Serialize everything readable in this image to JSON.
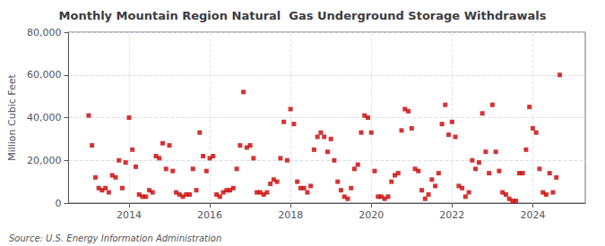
{
  "chart_data": {
    "type": "scatter",
    "title": "Monthly Mountain Region Natural  Gas Underground Storage Withdrawals",
    "ylabel": "Million Cubic Feet",
    "annotation": "Source: U.S. Energy Information Administration",
    "color": "#cc0000",
    "marker": "square",
    "grid": true,
    "xlim": [
      2012.5,
      2025.3
    ],
    "xticks": [
      2014,
      2016,
      2018,
      2020,
      2022,
      2024
    ],
    "ylim": [
      0,
      80000
    ],
    "yticks": [
      0,
      {
        "value": 20000,
        "label": "20,000"
      },
      {
        "value": 40000,
        "label": "40,000"
      },
      {
        "value": 60000,
        "label": "60,000"
      },
      {
        "value": 80000,
        "label": "80,000"
      }
    ],
    "x": [
      2013.0,
      2013.083,
      2013.167,
      2013.25,
      2013.333,
      2013.417,
      2013.5,
      2013.583,
      2013.667,
      2013.75,
      2013.833,
      2013.917,
      2014.0,
      2014.083,
      2014.167,
      2014.25,
      2014.333,
      2014.417,
      2014.5,
      2014.583,
      2014.667,
      2014.75,
      2014.833,
      2014.917,
      2015.0,
      2015.083,
      2015.167,
      2015.25,
      2015.333,
      2015.417,
      2015.5,
      2015.583,
      2015.667,
      2015.75,
      2015.833,
      2015.917,
      2016.0,
      2016.083,
      2016.167,
      2016.25,
      2016.333,
      2016.417,
      2016.5,
      2016.583,
      2016.667,
      2016.75,
      2016.833,
      2016.917,
      2017.0,
      2017.083,
      2017.167,
      2017.25,
      2017.333,
      2017.417,
      2017.5,
      2017.583,
      2017.667,
      2017.75,
      2017.833,
      2017.917,
      2018.0,
      2018.083,
      2018.167,
      2018.25,
      2018.333,
      2018.417,
      2018.5,
      2018.583,
      2018.667,
      2018.75,
      2018.833,
      2018.917,
      2019.0,
      2019.083,
      2019.167,
      2019.25,
      2019.333,
      2019.417,
      2019.5,
      2019.583,
      2019.667,
      2019.75,
      2019.833,
      2019.917,
      2020.0,
      2020.083,
      2020.167,
      2020.25,
      2020.333,
      2020.417,
      2020.5,
      2020.583,
      2020.667,
      2020.75,
      2020.833,
      2020.917,
      2021.0,
      2021.083,
      2021.167,
      2021.25,
      2021.333,
      2021.417,
      2021.5,
      2021.583,
      2021.667,
      2021.75,
      2021.833,
      2021.917,
      2022.0,
      2022.083,
      2022.167,
      2022.25,
      2022.333,
      2022.417,
      2022.5,
      2022.583,
      2022.667,
      2022.75,
      2022.833,
      2022.917,
      2023.0,
      2023.083,
      2023.167,
      2023.25,
      2023.333,
      2023.417,
      2023.5,
      2023.583,
      2023.667,
      2023.75,
      2023.833,
      2023.917,
      2024.0,
      2024.083,
      2024.167,
      2024.25,
      2024.333,
      2024.417,
      2024.5,
      2024.583,
      2024.667
    ],
    "values": [
      41000,
      27000,
      12000,
      7000,
      6000,
      7000,
      5000,
      13000,
      12000,
      20000,
      7000,
      19000,
      40000,
      25000,
      17000,
      4000,
      3000,
      3000,
      6000,
      5000,
      22000,
      21000,
      28000,
      16000,
      27000,
      15000,
      5000,
      4000,
      3000,
      4000,
      4000,
      16000,
      6000,
      33000,
      22000,
      15000,
      21000,
      22000,
      4000,
      3000,
      5000,
      6000,
      6000,
      7000,
      16000,
      27000,
      52000,
      26000,
      27000,
      21000,
      5000,
      5000,
      4000,
      5000,
      9000,
      11000,
      10000,
      21000,
      38000,
      20000,
      44000,
      37000,
      10000,
      7000,
      7000,
      5000,
      8000,
      25000,
      31000,
      33000,
      31000,
      24000,
      30000,
      20000,
      10000,
      6000,
      3000,
      2000,
      7000,
      16000,
      18000,
      33000,
      41000,
      40000,
      33000,
      15000,
      3000,
      3000,
      2000,
      3000,
      10000,
      13000,
      14000,
      34000,
      44000,
      43000,
      35000,
      16000,
      15000,
      6000,
      2000,
      4000,
      11000,
      8000,
      14000,
      37000,
      46000,
      32000,
      38000,
      31000,
      8000,
      7000,
      3000,
      5000,
      20000,
      16000,
      19000,
      42000,
      24000,
      14000,
      46000,
      24000,
      15000,
      5000,
      4000,
      2000,
      1000,
      1000,
      14000,
      14000,
      25000,
      45000,
      35000,
      33000,
      16000,
      5000,
      4000,
      14000,
      5000,
      12000,
      60000
    ]
  }
}
